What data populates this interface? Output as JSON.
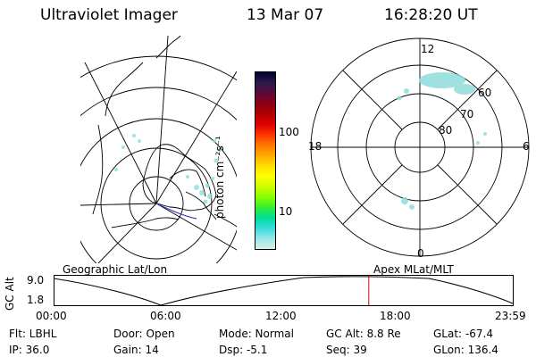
{
  "header": {
    "instrument": "Ultraviolet Imager",
    "date": "13 Mar 07",
    "time": "16:28:20 UT"
  },
  "left_panel": {
    "caption": "Geographic Lat/Lon"
  },
  "right_panel": {
    "caption": "Apex MLat/MLT",
    "mlt_labels": {
      "top": "12",
      "left": "18",
      "right": "6",
      "bottom": "0"
    },
    "lat_labels": [
      "60",
      "70",
      "80"
    ]
  },
  "colorbar": {
    "unit_label": "photon cm⁻²s⁻¹",
    "tick_labels": [
      "100",
      "10"
    ],
    "colors": [
      "#000033",
      "#2a1a4a",
      "#5a0a3a",
      "#8a0015",
      "#b00000",
      "#dd0000",
      "#ff3300",
      "#ff7700",
      "#ffaa00",
      "#ffdd00",
      "#ffff00",
      "#ccff00",
      "#88ff00",
      "#33ee33",
      "#00dd99",
      "#33dddd",
      "#99e6e6",
      "#d9eeee"
    ]
  },
  "altitude_plot": {
    "y_axis_label": "GC Alt",
    "y_ticks": [
      "9.0",
      "1.8"
    ],
    "x_ticks": [
      "00:00",
      "06:00",
      "12:00",
      "18:00",
      "23:59"
    ],
    "current_time_fraction": 0.6864
  },
  "info": {
    "filter": "Flt: LBHL",
    "ip": "IP: 36.0",
    "door": "Door: Open",
    "gain": "Gain: 14",
    "mode": "Mode: Normal",
    "dsp": "Dsp:    -5.1",
    "gc_alt": "GC Alt: 8.8 Re",
    "seq": "Seq: 39",
    "glat": "GLat: -67.4",
    "glon": "GLon: 136.4"
  }
}
